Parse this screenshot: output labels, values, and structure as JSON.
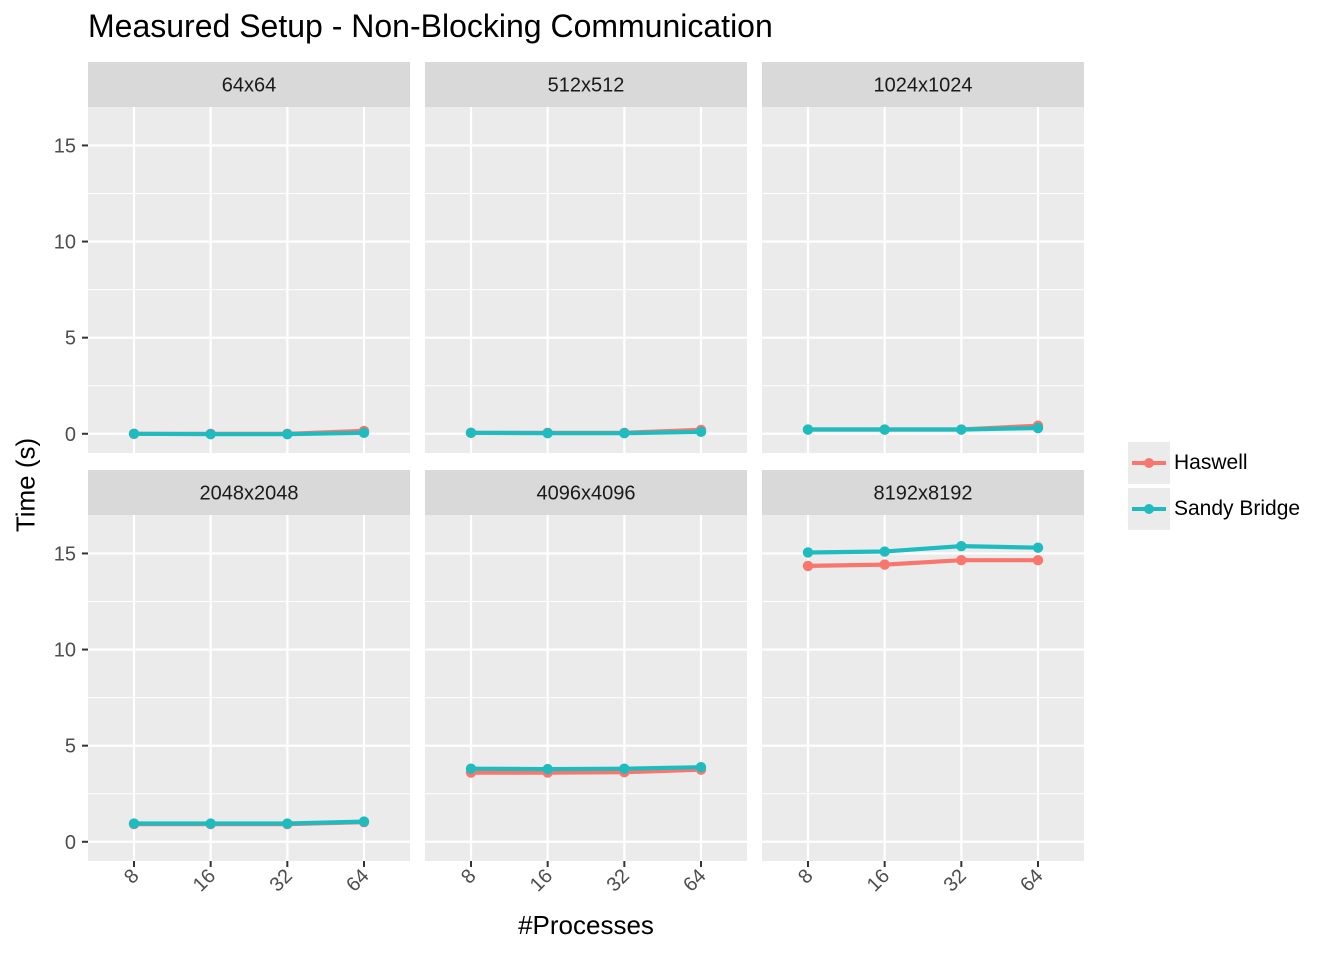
{
  "chart_data": {
    "type": "line",
    "title": "Measured Setup - Non-Blocking Communication",
    "xlabel": "#Processes",
    "ylabel": "Time (s)",
    "x": [
      "8",
      "16",
      "32",
      "64"
    ],
    "ylim": [
      -1,
      17
    ],
    "yticks": [
      0,
      5,
      10,
      15
    ],
    "grid": true,
    "legend_position": "right",
    "facets": [
      {
        "label": "64x64",
        "series": [
          {
            "name": "Haswell",
            "values": [
              0.0,
              0.0,
              0.0,
              0.15
            ]
          },
          {
            "name": "Sandy Bridge",
            "values": [
              0.0,
              -0.02,
              -0.02,
              0.05
            ]
          }
        ]
      },
      {
        "label": "512x512",
        "series": [
          {
            "name": "Haswell",
            "values": [
              0.05,
              0.05,
              0.05,
              0.2
            ]
          },
          {
            "name": "Sandy Bridge",
            "values": [
              0.05,
              0.03,
              0.03,
              0.1
            ]
          }
        ]
      },
      {
        "label": "1024x1024",
        "series": [
          {
            "name": "Haswell",
            "values": [
              0.22,
              0.22,
              0.22,
              0.42
            ]
          },
          {
            "name": "Sandy Bridge",
            "values": [
              0.22,
              0.22,
              0.22,
              0.3
            ]
          }
        ]
      },
      {
        "label": "2048x2048",
        "series": [
          {
            "name": "Haswell",
            "values": [
              0.92,
              0.92,
              0.92,
              1.02
            ]
          },
          {
            "name": "Sandy Bridge",
            "values": [
              0.95,
              0.95,
              0.95,
              1.05
            ]
          }
        ]
      },
      {
        "label": "4096x4096",
        "series": [
          {
            "name": "Haswell",
            "values": [
              3.6,
              3.6,
              3.62,
              3.75
            ]
          },
          {
            "name": "Sandy Bridge",
            "values": [
              3.8,
              3.78,
              3.8,
              3.88
            ]
          }
        ]
      },
      {
        "label": "8192x8192",
        "series": [
          {
            "name": "Haswell",
            "values": [
              14.35,
              14.42,
              14.65,
              14.65
            ]
          },
          {
            "name": "Sandy Bridge",
            "values": [
              15.05,
              15.1,
              15.38,
              15.3
            ]
          }
        ]
      }
    ],
    "colors": {
      "Haswell": "#f8766d",
      "Sandy Bridge": "#1fbcbf"
    }
  }
}
